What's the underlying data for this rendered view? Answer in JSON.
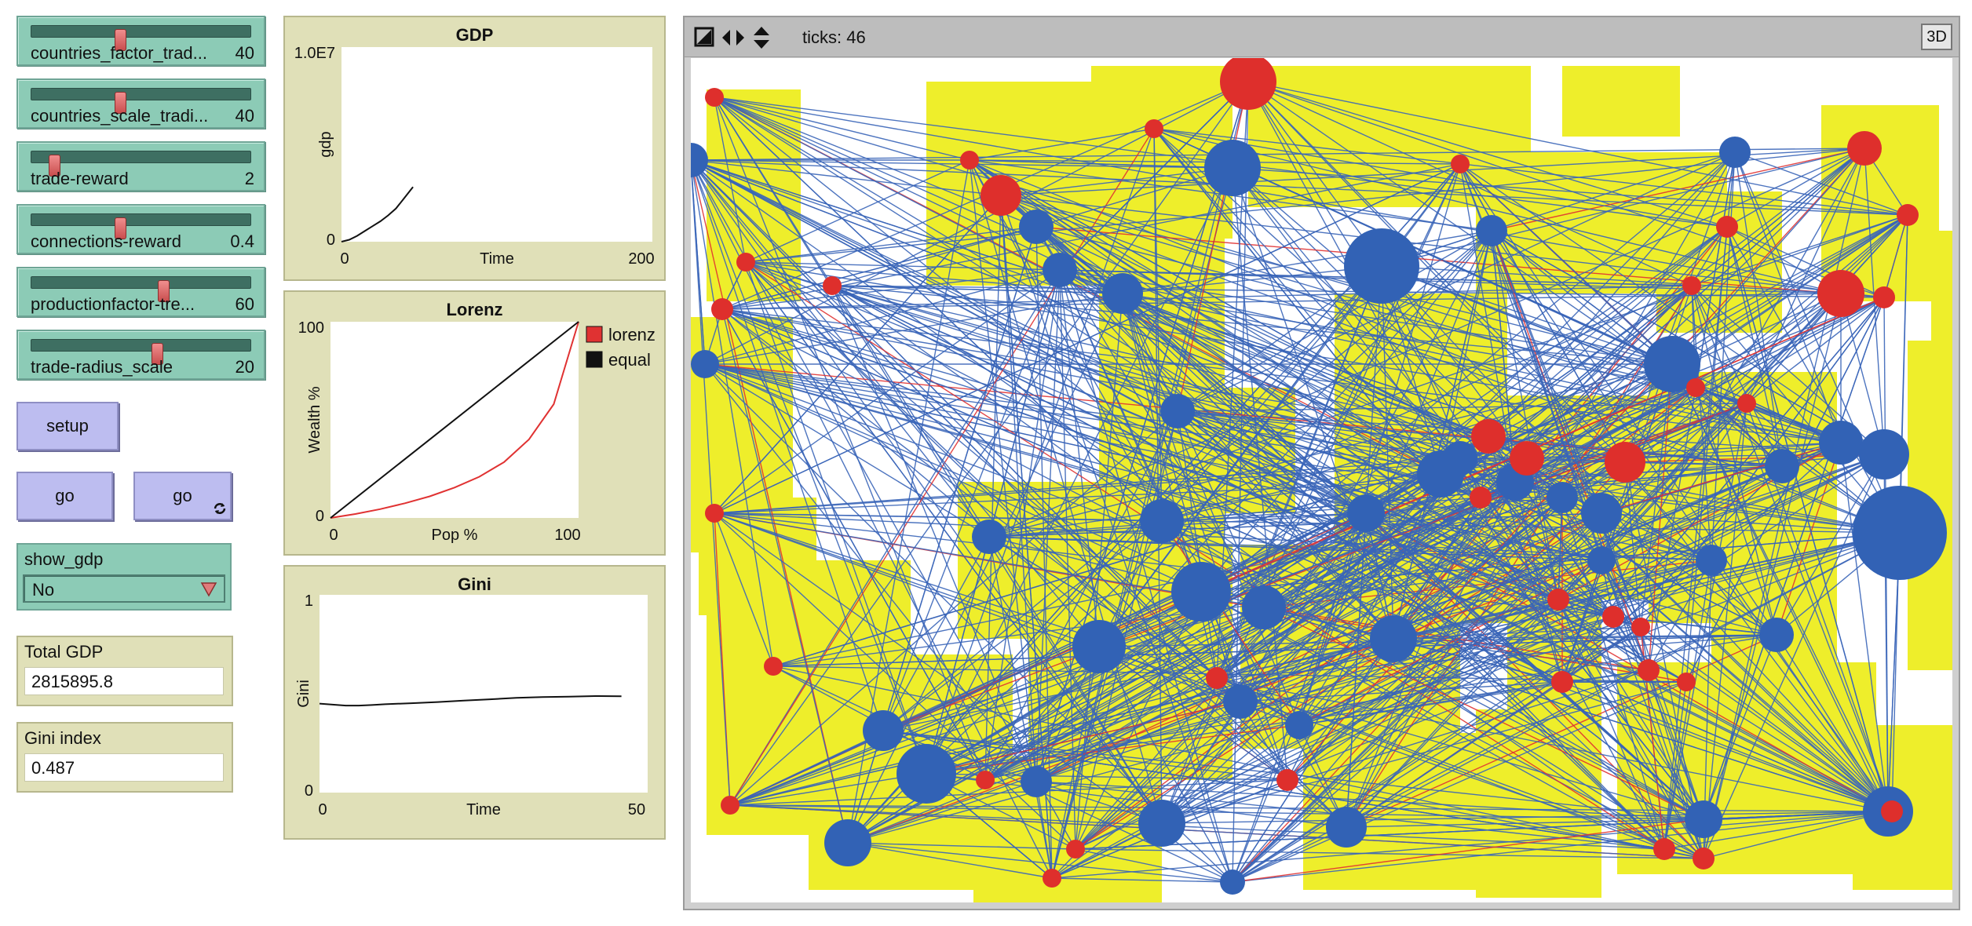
{
  "sliders": [
    {
      "name": "countries_factor_trad...",
      "value": "40",
      "fraction": 0.4
    },
    {
      "name": "countries_scale_tradi...",
      "value": "40",
      "fraction": 0.4
    },
    {
      "name": "trade-reward",
      "value": "2",
      "fraction": 0.1
    },
    {
      "name": "connections-reward",
      "value": "0.4",
      "fraction": 0.4
    },
    {
      "name": "productionfactor-tre...",
      "value": "60",
      "fraction": 0.6
    },
    {
      "name": "trade-radius_scale",
      "value": "20",
      "fraction": 0.57
    }
  ],
  "buttons": {
    "setup": "setup",
    "go_once": "go",
    "go_forever": "go"
  },
  "chooser": {
    "label": "show_gdp",
    "value": "No"
  },
  "monitors": {
    "total_gdp": {
      "label": "Total GDP",
      "value": "2815895.8"
    },
    "gini_index": {
      "label": "Gini index",
      "value": "0.487"
    }
  },
  "view": {
    "ticks": "ticks: 46",
    "btn_3d": "3D"
  },
  "colors": {
    "patch": "#eeee2b",
    "blue_agent": "#3262b5",
    "red_agent": "#de2f2c",
    "link_blue": "#3a65b8",
    "link_red": "#e03232"
  },
  "chart_data": [
    {
      "type": "line",
      "title": "GDP",
      "xlabel": "Time",
      "ylabel": "gdp",
      "x_ticks": [
        "0",
        "200"
      ],
      "y_ticks": [
        "0",
        "1.0E7"
      ],
      "xlim": [
        0,
        200
      ],
      "ylim": [
        0,
        10000000
      ],
      "series": [
        {
          "x": [
            0,
            5,
            10,
            15,
            20,
            25,
            30,
            35,
            40,
            46
          ],
          "y": [
            0,
            100000,
            300000,
            550000,
            800000,
            1050000,
            1350000,
            1700000,
            2200000,
            2815895.8
          ]
        }
      ]
    },
    {
      "type": "line",
      "title": "Lorenz",
      "xlabel": "Pop %",
      "ylabel": "Wealth %",
      "x_ticks": [
        "0",
        "100"
      ],
      "y_ticks": [
        "0",
        "100"
      ],
      "xlim": [
        0,
        100
      ],
      "ylim": [
        0,
        100
      ],
      "legend": "right",
      "series": [
        {
          "name": "lorenz",
          "x": [
            0,
            10,
            20,
            30,
            40,
            50,
            60,
            70,
            80,
            90,
            100
          ],
          "y": [
            0,
            2,
            4.5,
            7.5,
            11,
            15.5,
            21,
            28.5,
            40,
            58,
            100
          ]
        },
        {
          "name": "equal",
          "x": [
            0,
            100
          ],
          "y": [
            0,
            100
          ]
        }
      ]
    },
    {
      "type": "line",
      "title": "Gini",
      "xlabel": "Time",
      "ylabel": "Gini",
      "x_ticks": [
        "0",
        "50"
      ],
      "y_ticks": [
        "0",
        "1"
      ],
      "xlim": [
        0,
        50
      ],
      "ylim": [
        0,
        1
      ],
      "series": [
        {
          "x": [
            0,
            2,
            4,
            6,
            8,
            10,
            14,
            18,
            22,
            26,
            30,
            34,
            38,
            42,
            46
          ],
          "y": [
            0.45,
            0.445,
            0.44,
            0.44,
            0.443,
            0.447,
            0.452,
            0.458,
            0.465,
            0.472,
            0.479,
            0.483,
            0.485,
            0.488,
            0.487
          ]
        }
      ]
    }
  ]
}
